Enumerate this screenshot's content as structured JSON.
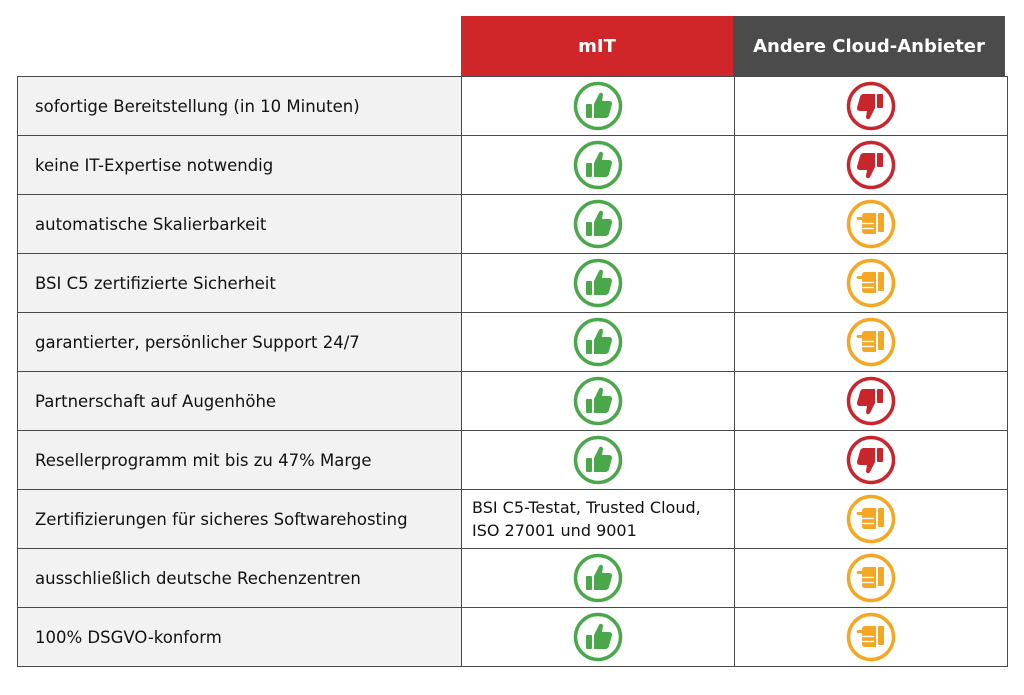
{
  "header": {
    "col_mit": "mIT",
    "col_other": "Andere Cloud-Anbieter"
  },
  "colors": {
    "green": "#4aa84a",
    "red": "#c8262c",
    "orange": "#f5a623",
    "header_red": "#d0262a",
    "header_gray": "#4b4b4b"
  },
  "rows": [
    {
      "label": "sofortige Bereitstellung (in 10 Minuten)",
      "mit": "thumbs-up-icon",
      "other": "thumbs-down-icon"
    },
    {
      "label": "keine IT-Expertise notwendig",
      "mit": "thumbs-up-icon",
      "other": "thumbs-down-icon"
    },
    {
      "label": "automatische Skalierbarkeit",
      "mit": "thumbs-up-icon",
      "other": "thumbs-neutral-icon"
    },
    {
      "label": "BSI C5 zertifizierte Sicherheit",
      "mit": "thumbs-up-icon",
      "other": "thumbs-neutral-icon"
    },
    {
      "label": "garantierter, persönlicher Support 24/7",
      "mit": "thumbs-up-icon",
      "other": "thumbs-neutral-icon"
    },
    {
      "label": "Partnerschaft auf Augenhöhe",
      "mit": "thumbs-up-icon",
      "other": "thumbs-down-icon"
    },
    {
      "label": "Resellerprogramm mit bis zu 47% Marge",
      "mit": "thumbs-up-icon",
      "other": "thumbs-down-icon"
    },
    {
      "label": "Zertifizierungen für sicheres Softwarehosting",
      "mit_text": [
        "BSI C5-Testat, Trusted Cloud,",
        "ISO 27001 und 9001"
      ],
      "other": "thumbs-neutral-icon"
    },
    {
      "label": "ausschließlich deutsche Rechenzentren",
      "mit": "thumbs-up-icon",
      "other": "thumbs-neutral-icon"
    },
    {
      "label": "100% DSGVO-konform",
      "mit": "thumbs-up-icon",
      "other": "thumbs-neutral-icon"
    }
  ]
}
